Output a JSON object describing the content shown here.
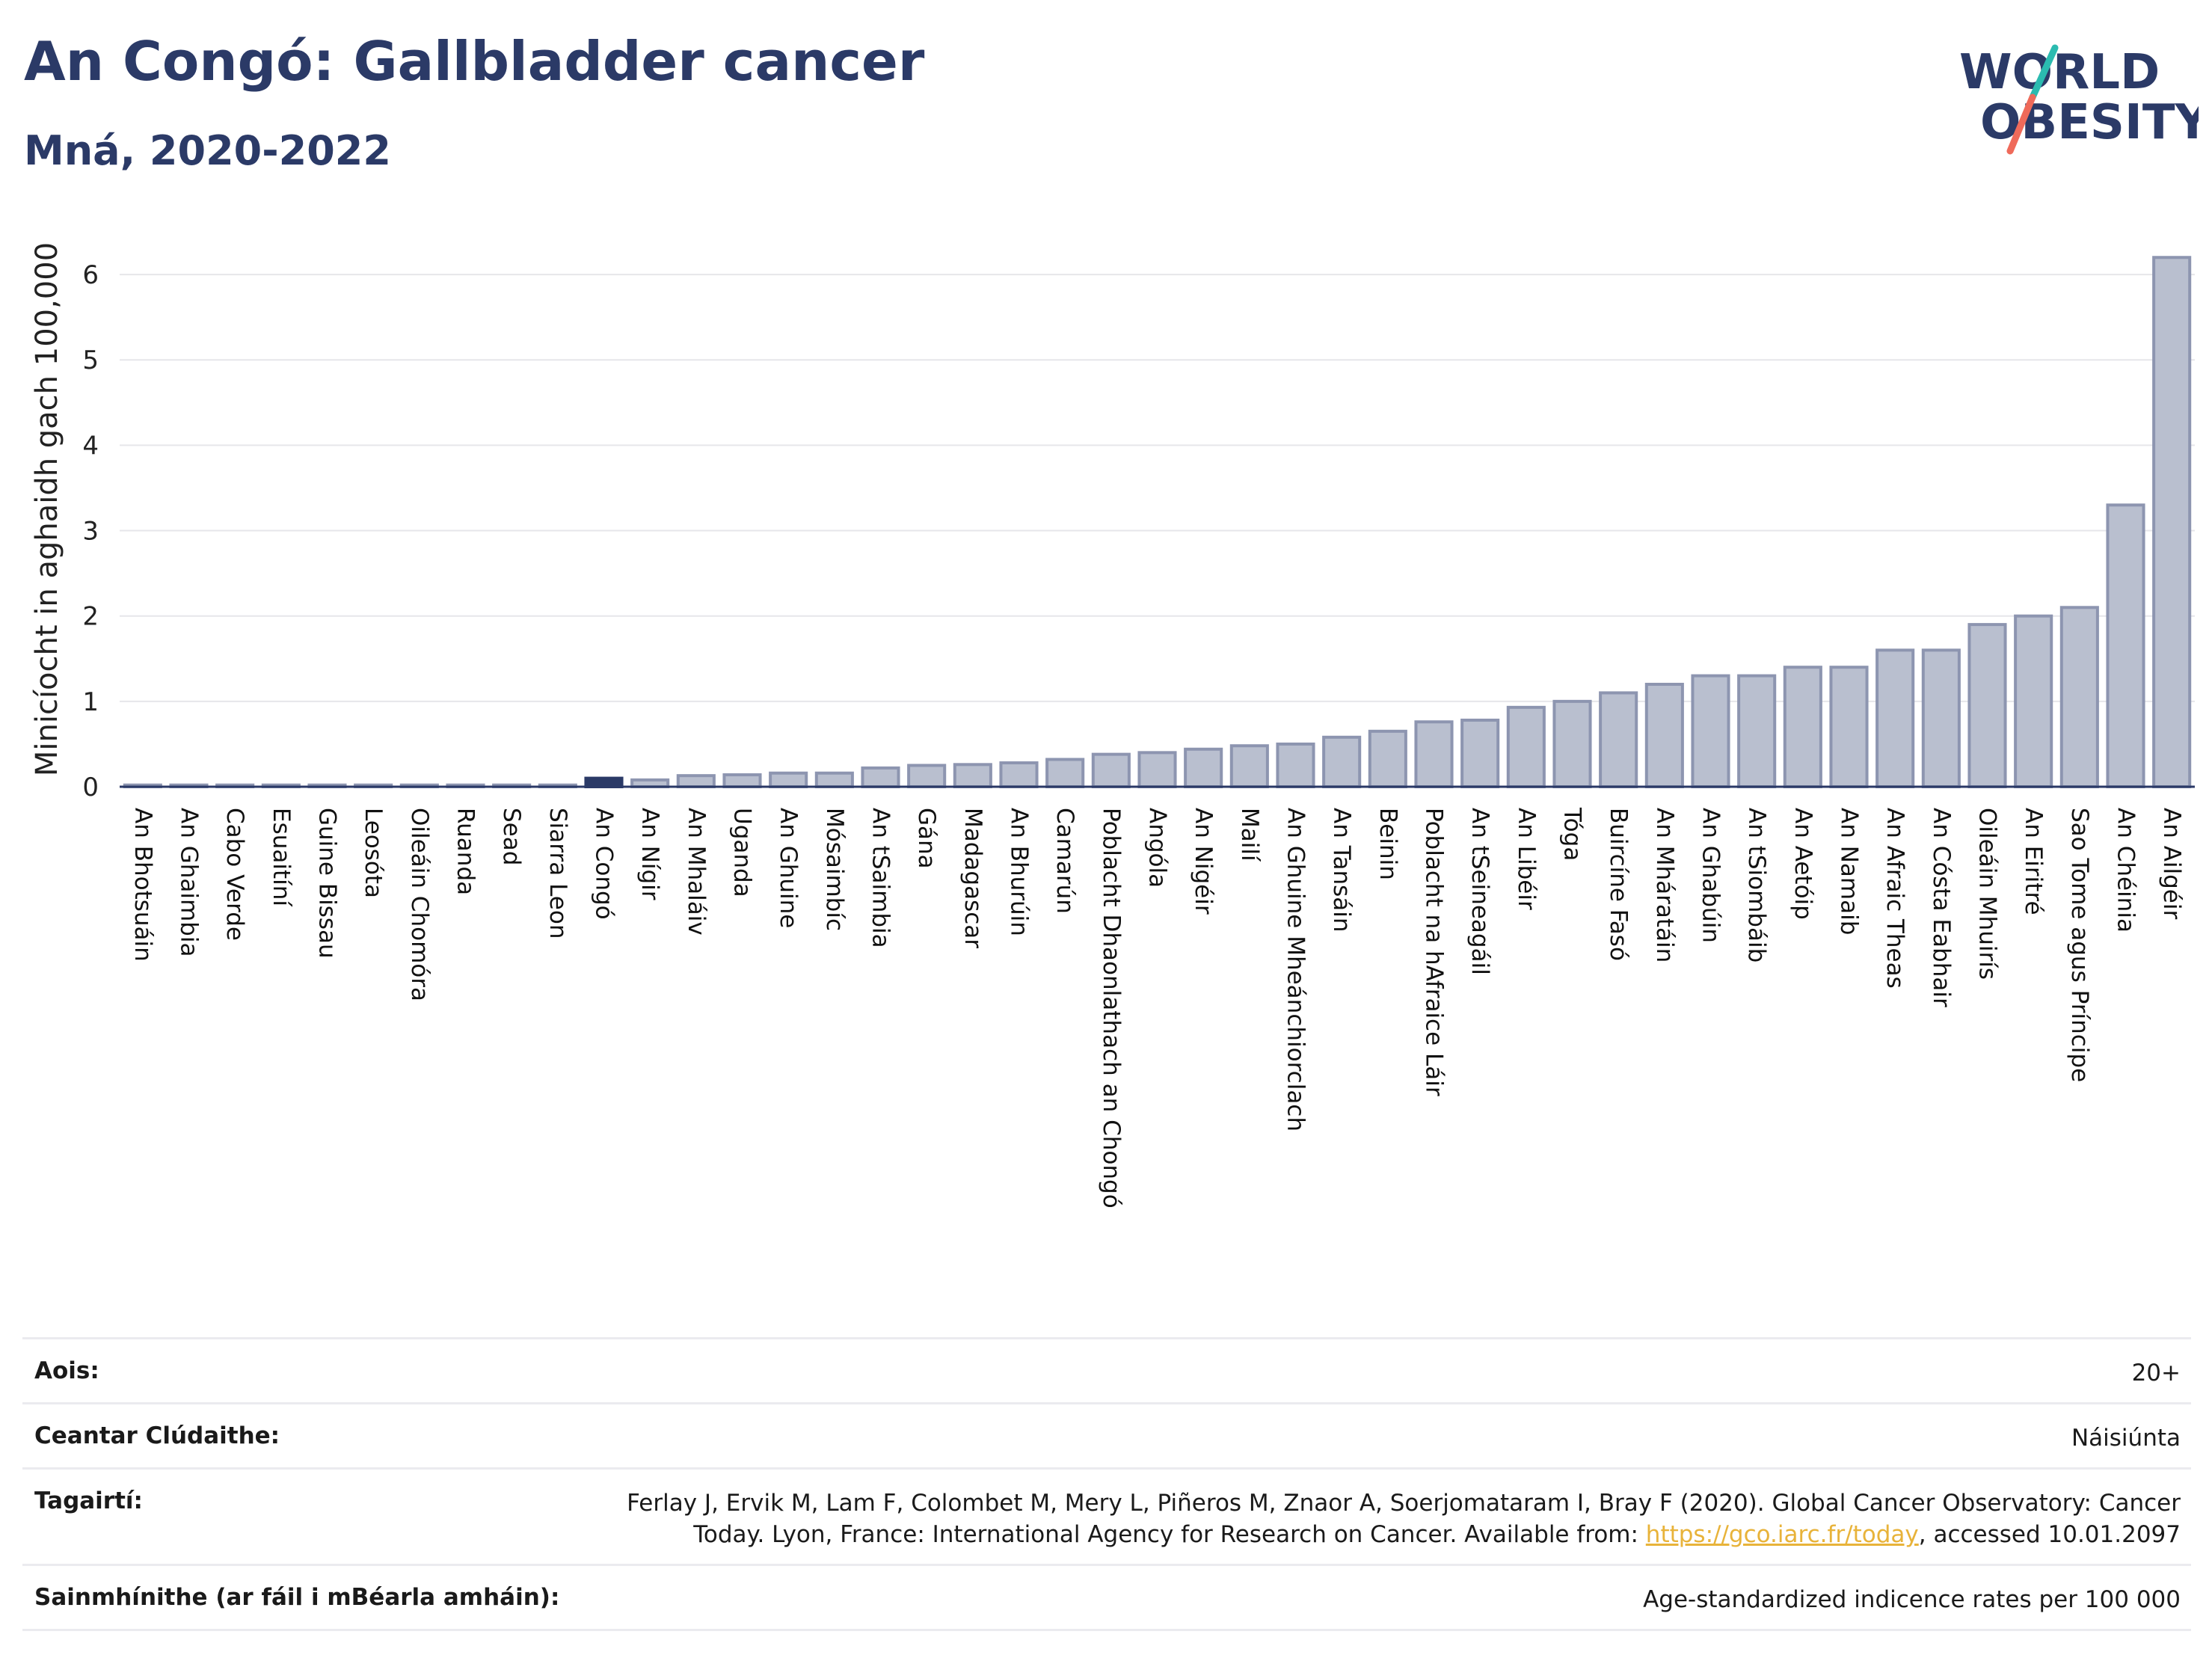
{
  "header": {
    "title": "An Congó: Gallbladder cancer",
    "subtitle": "Mná, 2020-2022"
  },
  "logo": {
    "line1": "WORLD",
    "line2": "OBESITY"
  },
  "colors": {
    "bar": "#b9bfcf",
    "bar_stroke": "#8d95b0",
    "highlight": "#2b3a67",
    "grid": "#e6e6ea"
  },
  "chart_data": {
    "type": "bar",
    "ylabel": "Minicíocht in aghaidh gach 100,000",
    "ylim": [
      0,
      6.5
    ],
    "yticks": [
      0,
      1,
      2,
      3,
      4,
      5,
      6
    ],
    "highlight": "An Congó",
    "categories": [
      "An Bhotsuáin",
      "An Ghaimbia",
      "Cabo Verde",
      "Esuaitíní",
      "Guine Bissau",
      "Leosóta",
      "Oileáin Chomóra",
      "Ruanda",
      "Sead",
      "Siarra Leon",
      "An Congó",
      "An Nígir",
      "An Mhaláiv",
      "Uganda",
      "An Ghuine",
      "Mósaimbíc",
      "An tSaimbia",
      "Gána",
      "Madagascar",
      "An Bhurúin",
      "Camarún",
      "Poblacht Dhaonlathach an Chongó",
      "Angóla",
      "An Nigéir",
      "Mailí",
      "An Ghuine Mheánchiorclach",
      "An Tansáin",
      "Beinin",
      "Poblacht na hAfraice Láir",
      "An tSeineagáil",
      "An Libéir",
      "Tóga",
      "Buircíne Fasó",
      "An Mháratáin",
      "An Ghabúin",
      "An tSiombáib",
      "An Aetóip",
      "An Namaib",
      "An Afraic Theas",
      "An Cósta Eabhair",
      "Oileáin Mhuirís",
      "An Eiritré",
      "Sao Tome agus Príncipe",
      "An Chéinia",
      "An Ailgéir"
    ],
    "values": [
      0.02,
      0.02,
      0.02,
      0.02,
      0.02,
      0.02,
      0.02,
      0.02,
      0.02,
      0.02,
      0.1,
      0.08,
      0.13,
      0.14,
      0.16,
      0.16,
      0.22,
      0.25,
      0.26,
      0.28,
      0.32,
      0.38,
      0.4,
      0.44,
      0.48,
      0.5,
      0.58,
      0.65,
      0.76,
      0.78,
      0.93,
      1.0,
      1.1,
      1.2,
      1.3,
      1.3,
      1.4,
      1.4,
      1.6,
      1.6,
      1.9,
      2.0,
      2.1,
      3.3,
      6.2
    ]
  },
  "info": {
    "age_label": "Aois:",
    "age_value": "20+",
    "area_label": "Ceantar Clúdaithe:",
    "area_value": "Náisiúnta",
    "refs_label": "Tagairtí:",
    "refs_line1": "Ferlay J, Ervik M, Lam F, Colombet M, Mery L, Piñeros M, Znaor A, Soerjomataram I, Bray F (2020). Global Cancer Observatory: Cancer",
    "refs_line2a": "Today. Lyon, France: International Agency for Research on Cancer. Available from: ",
    "refs_link": "https://gco.iarc.fr/today",
    "refs_line2b": ", accessed 10.01.2097",
    "defs_label": "Sainmhínithe (ar fáil i mBéarla amháin):",
    "defs_value": "Age-standardized indicence rates per 100 000"
  }
}
